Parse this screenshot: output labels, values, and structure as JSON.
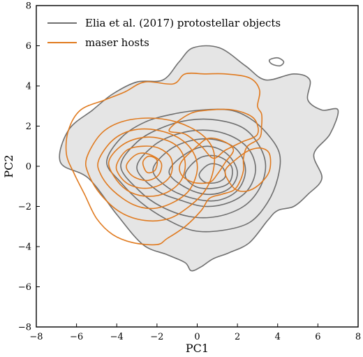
{
  "chart_data": {
    "type": "contour",
    "xlabel": "PC1",
    "ylabel": "PC2",
    "xlim": [
      -8,
      8
    ],
    "ylim": [
      -8,
      8
    ],
    "xticks": [
      -8,
      -6,
      -4,
      -2,
      0,
      2,
      4,
      6,
      8
    ],
    "yticks": [
      -8,
      -6,
      -4,
      -2,
      0,
      2,
      4,
      6,
      8
    ],
    "tick_labels_x": [
      "−8",
      "−6",
      "−4",
      "−2",
      "0",
      "2",
      "4",
      "6",
      "8"
    ],
    "tick_labels_y": [
      "−8",
      "−6",
      "−4",
      "−2",
      "0",
      "2",
      "4",
      "6",
      "8"
    ],
    "grid": false,
    "legend_position": "top-left",
    "series": [
      {
        "name": "Elia et al. (2017) protostellar objects",
        "color": "#6e6e6e",
        "fill_outer": "#e5e5e5",
        "contours": [
          [
            [
              -6.8,
              0.2
            ],
            [
              -6.4,
              1.8
            ],
            [
              -5.2,
              2.8
            ],
            [
              -4.2,
              3.6
            ],
            [
              -3.0,
              4.2
            ],
            [
              -1.7,
              4.3
            ],
            [
              -0.9,
              5.2
            ],
            [
              -0.2,
              5.9
            ],
            [
              1.1,
              5.9
            ],
            [
              2.4,
              5.0
            ],
            [
              3.4,
              4.3
            ],
            [
              4.8,
              4.6
            ],
            [
              5.6,
              4.3
            ],
            [
              5.5,
              3.3
            ],
            [
              6.2,
              2.8
            ],
            [
              7.0,
              2.8
            ],
            [
              6.6,
              1.6
            ],
            [
              5.8,
              0.6
            ],
            [
              6.2,
              -0.6
            ],
            [
              5.5,
              -1.4
            ],
            [
              4.8,
              -2.0
            ],
            [
              4.0,
              -2.2
            ],
            [
              3.5,
              -2.7
            ],
            [
              2.6,
              -3.8
            ],
            [
              1.6,
              -4.3
            ],
            [
              0.8,
              -4.6
            ],
            [
              0.2,
              -5.0
            ],
            [
              -0.3,
              -5.2
            ],
            [
              -0.6,
              -4.8
            ],
            [
              -1.5,
              -4.4
            ],
            [
              -2.7,
              -3.9
            ],
            [
              -4.0,
              -2.4
            ],
            [
              -5.4,
              -0.6
            ],
            [
              -6.8,
              0.2
            ]
          ],
          [
            [
              -4.5,
              0.2
            ],
            [
              -3.8,
              1.4
            ],
            [
              -2.6,
              2.2
            ],
            [
              -1.2,
              2.6
            ],
            [
              0.2,
              2.8
            ],
            [
              1.6,
              2.8
            ],
            [
              2.6,
              2.4
            ],
            [
              3.5,
              1.6
            ],
            [
              4.1,
              0.6
            ],
            [
              4.0,
              -0.6
            ],
            [
              3.5,
              -1.8
            ],
            [
              2.6,
              -2.8
            ],
            [
              1.2,
              -3.2
            ],
            [
              -0.2,
              -3.2
            ],
            [
              -1.6,
              -2.6
            ],
            [
              -2.8,
              -1.8
            ],
            [
              -3.8,
              -0.8
            ],
            [
              -4.5,
              0.2
            ]
          ],
          [
            [
              -3.8,
              0.0
            ],
            [
              -3.0,
              1.2
            ],
            [
              -1.8,
              1.9
            ],
            [
              -0.4,
              2.3
            ],
            [
              1.0,
              2.3
            ],
            [
              2.3,
              1.9
            ],
            [
              3.1,
              1.0
            ],
            [
              3.4,
              0.0
            ],
            [
              3.1,
              -1.1
            ],
            [
              2.3,
              -2.0
            ],
            [
              1.0,
              -2.5
            ],
            [
              -0.4,
              -2.5
            ],
            [
              -1.8,
              -2.0
            ],
            [
              -2.9,
              -1.2
            ],
            [
              -3.8,
              0.0
            ]
          ],
          [
            [
              -3.0,
              -0.1
            ],
            [
              -2.2,
              1.0
            ],
            [
              -1.0,
              1.6
            ],
            [
              0.4,
              1.8
            ],
            [
              1.7,
              1.5
            ],
            [
              2.6,
              0.8
            ],
            [
              2.9,
              -0.2
            ],
            [
              2.5,
              -1.2
            ],
            [
              1.6,
              -1.8
            ],
            [
              0.4,
              -2.0
            ],
            [
              -0.8,
              -1.7
            ],
            [
              -2.0,
              -1.2
            ],
            [
              -3.0,
              -0.1
            ]
          ],
          [
            [
              -2.2,
              -0.2
            ],
            [
              -1.4,
              0.8
            ],
            [
              -0.2,
              1.3
            ],
            [
              1.0,
              1.3
            ],
            [
              2.0,
              0.8
            ],
            [
              2.4,
              -0.2
            ],
            [
              2.0,
              -1.2
            ],
            [
              1.0,
              -1.7
            ],
            [
              -0.2,
              -1.6
            ],
            [
              -1.4,
              -1.1
            ],
            [
              -2.2,
              -0.2
            ]
          ],
          [
            [
              -1.4,
              -0.3
            ],
            [
              -0.6,
              0.6
            ],
            [
              0.5,
              1.0
            ],
            [
              1.5,
              0.6
            ],
            [
              2.0,
              -0.3
            ],
            [
              1.6,
              -1.1
            ],
            [
              0.6,
              -1.4
            ],
            [
              -0.5,
              -1.1
            ],
            [
              -1.4,
              -0.3
            ]
          ],
          [
            [
              -0.6,
              -0.4
            ],
            [
              0.1,
              0.4
            ],
            [
              1.0,
              0.5
            ],
            [
              1.7,
              0.0
            ],
            [
              1.6,
              -0.8
            ],
            [
              0.8,
              -1.1
            ],
            [
              -0.1,
              -1.0
            ],
            [
              -0.6,
              -0.4
            ]
          ],
          [
            [
              0.1,
              -0.4
            ],
            [
              0.6,
              0.1
            ],
            [
              1.2,
              0.0
            ],
            [
              1.4,
              -0.5
            ],
            [
              1.0,
              -0.8
            ],
            [
              0.4,
              -0.8
            ],
            [
              0.1,
              -0.4
            ]
          ],
          [
            [
              3.6,
              5.3
            ],
            [
              4.0,
              5.4
            ],
            [
              4.3,
              5.2
            ],
            [
              4.1,
              5.0
            ],
            [
              3.7,
              5.1
            ],
            [
              3.6,
              5.3
            ]
          ]
        ]
      },
      {
        "name": "maser hosts",
        "color": "#e07a1f",
        "contours": [
          [
            [
              -6.4,
              1.8
            ],
            [
              -5.8,
              2.8
            ],
            [
              -4.6,
              3.3
            ],
            [
              -3.6,
              3.7
            ],
            [
              -2.6,
              4.2
            ],
            [
              -1.2,
              4.1
            ],
            [
              -0.6,
              4.6
            ],
            [
              0.4,
              4.6
            ],
            [
              1.4,
              4.6
            ],
            [
              2.6,
              4.4
            ],
            [
              3.1,
              3.8
            ],
            [
              3.0,
              3.0
            ],
            [
              3.2,
              2.6
            ],
            [
              3.2,
              2.0
            ],
            [
              3.1,
              1.4
            ],
            [
              2.5,
              1.0
            ],
            [
              2.3,
              0.4
            ],
            [
              2.3,
              -0.2
            ],
            [
              2.1,
              -0.8
            ],
            [
              1.8,
              -1.2
            ],
            [
              1.2,
              -1.4
            ],
            [
              0.6,
              -1.6
            ],
            [
              0.2,
              -2.2
            ],
            [
              -0.6,
              -3.0
            ],
            [
              -1.5,
              -3.6
            ],
            [
              -2.0,
              -3.9
            ],
            [
              -3.2,
              -3.8
            ],
            [
              -4.2,
              -3.4
            ],
            [
              -5.0,
              -2.6
            ],
            [
              -5.6,
              -1.4
            ],
            [
              -6.1,
              -0.4
            ],
            [
              -6.5,
              0.6
            ],
            [
              -6.4,
              1.8
            ]
          ],
          [
            [
              -5.5,
              0.4
            ],
            [
              -4.8,
              1.6
            ],
            [
              -3.8,
              2.2
            ],
            [
              -2.4,
              2.4
            ],
            [
              -1.0,
              2.2
            ],
            [
              0.2,
              1.6
            ],
            [
              0.8,
              0.8
            ],
            [
              0.8,
              -0.2
            ],
            [
              0.4,
              -1.2
            ],
            [
              -0.4,
              -2.0
            ],
            [
              -1.4,
              -2.6
            ],
            [
              -2.6,
              -2.7
            ],
            [
              -3.8,
              -2.3
            ],
            [
              -4.8,
              -1.4
            ],
            [
              -5.4,
              -0.4
            ],
            [
              -5.5,
              0.4
            ]
          ],
          [
            [
              -4.9,
              0.3
            ],
            [
              -4.2,
              1.3
            ],
            [
              -3.2,
              1.8
            ],
            [
              -2.0,
              1.8
            ],
            [
              -0.9,
              1.4
            ],
            [
              -0.2,
              0.7
            ],
            [
              0.0,
              -0.2
            ],
            [
              -0.4,
              -1.2
            ],
            [
              -1.2,
              -1.8
            ],
            [
              -2.2,
              -2.1
            ],
            [
              -3.2,
              -1.9
            ],
            [
              -4.2,
              -1.2
            ],
            [
              -4.8,
              -0.4
            ],
            [
              -4.9,
              0.3
            ]
          ],
          [
            [
              -4.4,
              0.2
            ],
            [
              -3.8,
              1.0
            ],
            [
              -2.9,
              1.4
            ],
            [
              -1.9,
              1.4
            ],
            [
              -1.0,
              1.0
            ],
            [
              -0.6,
              0.2
            ],
            [
              -0.8,
              -0.7
            ],
            [
              -1.5,
              -1.3
            ],
            [
              -2.4,
              -1.5
            ],
            [
              -3.3,
              -1.3
            ],
            [
              -4.0,
              -0.7
            ],
            [
              -4.4,
              0.2
            ]
          ],
          [
            [
              -4.0,
              0.1
            ],
            [
              -3.5,
              0.8
            ],
            [
              -2.7,
              1.0
            ],
            [
              -1.9,
              0.9
            ],
            [
              -1.3,
              0.4
            ],
            [
              -1.3,
              -0.4
            ],
            [
              -1.8,
              -0.9
            ],
            [
              -2.6,
              -1.1
            ],
            [
              -3.4,
              -0.9
            ],
            [
              -3.9,
              -0.4
            ],
            [
              -4.0,
              0.1
            ]
          ],
          [
            [
              -3.5,
              0.1
            ],
            [
              -3.0,
              0.6
            ],
            [
              -2.4,
              0.6
            ],
            [
              -1.8,
              0.2
            ],
            [
              -1.9,
              -0.4
            ],
            [
              -2.4,
              -0.7
            ],
            [
              -3.0,
              -0.6
            ],
            [
              -3.4,
              -0.3
            ],
            [
              -3.5,
              0.1
            ]
          ],
          [
            [
              -2.7,
              0.2
            ],
            [
              -2.4,
              0.5
            ],
            [
              -2.0,
              0.3
            ],
            [
              -2.1,
              -0.2
            ],
            [
              -2.5,
              -0.3
            ],
            [
              -2.7,
              0.2
            ]
          ],
          [
            [
              -1.4,
              1.8
            ],
            [
              -0.4,
              2.6
            ],
            [
              0.6,
              2.8
            ],
            [
              1.8,
              2.8
            ],
            [
              2.8,
              2.4
            ],
            [
              3.0,
              1.6
            ],
            [
              2.2,
              1.2
            ],
            [
              1.4,
              0.8
            ],
            [
              0.8,
              0.4
            ],
            [
              0.2,
              1.0
            ],
            [
              -0.6,
              1.6
            ],
            [
              -1.4,
              1.8
            ]
          ],
          [
            [
              -0.8,
              0.2
            ],
            [
              0.0,
              1.0
            ],
            [
              0.6,
              1.4
            ],
            [
              1.4,
              1.2
            ],
            [
              1.8,
              0.8
            ],
            [
              1.4,
              0.2
            ],
            [
              1.0,
              -0.4
            ],
            [
              0.6,
              -0.8
            ],
            [
              -0.2,
              -0.8
            ],
            [
              -0.8,
              -0.4
            ],
            [
              -0.8,
              0.2
            ]
          ],
          [
            [
              1.4,
              -0.2
            ],
            [
              2.0,
              0.4
            ],
            [
              2.6,
              0.8
            ],
            [
              3.2,
              0.9
            ],
            [
              3.6,
              0.6
            ],
            [
              3.6,
              -0.2
            ],
            [
              3.2,
              -0.8
            ],
            [
              2.6,
              -1.2
            ],
            [
              2.0,
              -1.2
            ],
            [
              1.6,
              -0.8
            ],
            [
              1.4,
              -0.2
            ]
          ]
        ]
      }
    ]
  }
}
